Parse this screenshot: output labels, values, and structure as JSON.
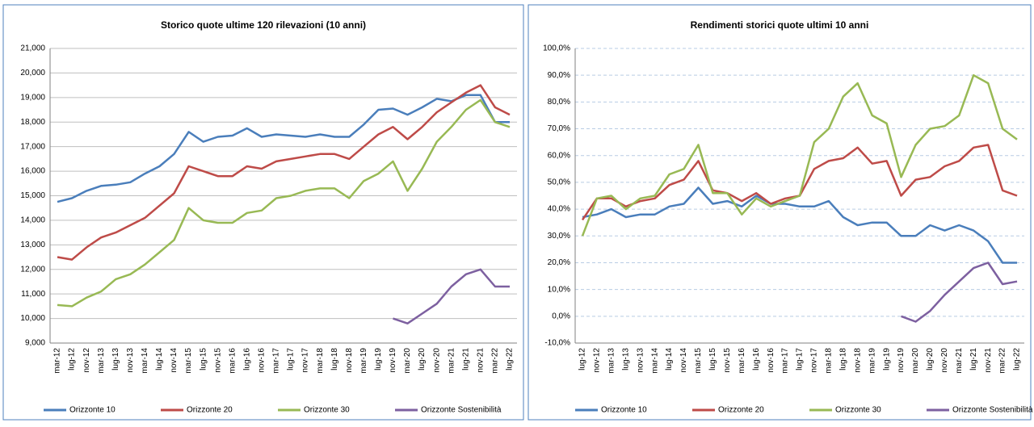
{
  "chart_data": [
    {
      "type": "line",
      "title": "Storico quote ultime 120 rilevazioni (10 anni)",
      "categories": [
        "mar-12",
        "lug-12",
        "nov-12",
        "mar-13",
        "lug-13",
        "nov-13",
        "mar-14",
        "lug-14",
        "nov-14",
        "mar-15",
        "lug-15",
        "nov-15",
        "mar-16",
        "lug-16",
        "nov-16",
        "mar-17",
        "lug-17",
        "nov-17",
        "mar-18",
        "lug-18",
        "nov-18",
        "mar-19",
        "lug-19",
        "nov-19",
        "mar-20",
        "lug-20",
        "nov-20",
        "mar-21",
        "lug-21",
        "nov-21",
        "mar-22",
        "lug-22"
      ],
      "series": [
        {
          "name": "Orizzonte 10",
          "color": "#4a7ebb",
          "values": [
            14750,
            14900,
            15200,
            15400,
            15450,
            15550,
            15900,
            16200,
            16700,
            17600,
            17200,
            17400,
            17450,
            17750,
            17400,
            17500,
            17450,
            17400,
            17500,
            17400,
            17400,
            17900,
            18500,
            18550,
            18300,
            18600,
            18950,
            18850,
            19100,
            19100,
            18000,
            18000
          ]
        },
        {
          "name": "Orizzonte 20",
          "color": "#be4b48",
          "values": [
            12500,
            12400,
            12900,
            13300,
            13500,
            13800,
            14100,
            14600,
            15100,
            16200,
            16000,
            15800,
            15800,
            16200,
            16100,
            16400,
            16500,
            16600,
            16700,
            16700,
            16500,
            17000,
            17500,
            17800,
            17300,
            17800,
            18400,
            18800,
            19200,
            19500,
            18600,
            18300
          ]
        },
        {
          "name": "Orizzonte 30",
          "color": "#98b954",
          "values": [
            10550,
            10500,
            10850,
            11100,
            11600,
            11800,
            12200,
            12700,
            13200,
            14500,
            14000,
            13900,
            13900,
            14300,
            14400,
            14900,
            15000,
            15200,
            15300,
            15300,
            14900,
            15600,
            15900,
            16400,
            15200,
            16100,
            17200,
            17800,
            18500,
            18900,
            18000,
            17800
          ]
        },
        {
          "name": "Orizzonte Sostenibilità",
          "color": "#7d60a0",
          "values": [
            null,
            null,
            null,
            null,
            null,
            null,
            null,
            null,
            null,
            null,
            null,
            null,
            null,
            null,
            null,
            null,
            null,
            null,
            null,
            null,
            null,
            null,
            null,
            10000,
            9800,
            10200,
            10600,
            11300,
            11800,
            12000,
            11300,
            11300
          ]
        }
      ],
      "ylim": [
        9000,
        21000
      ],
      "yticks": [
        {
          "value": 9000,
          "label": "9,000"
        },
        {
          "value": 10000,
          "label": "10,000"
        },
        {
          "value": 11000,
          "label": "11,000"
        },
        {
          "value": 12000,
          "label": "12,000"
        },
        {
          "value": 13000,
          "label": "13,000"
        },
        {
          "value": 14000,
          "label": "14,000"
        },
        {
          "value": 15000,
          "label": "15,000"
        },
        {
          "value": 16000,
          "label": "16,000"
        },
        {
          "value": 17000,
          "label": "17,000"
        },
        {
          "value": 18000,
          "label": "18,000"
        },
        {
          "value": 19000,
          "label": "19,000"
        },
        {
          "value": 20000,
          "label": "20,000"
        },
        {
          "value": 21000,
          "label": "21,000"
        }
      ],
      "grid": true,
      "legend": "bottom"
    },
    {
      "type": "line",
      "title": "Rendimenti storici quote ultimi 10 anni",
      "categories": [
        "lug-12",
        "nov-12",
        "mar-13",
        "lug-13",
        "nov-13",
        "mar-14",
        "lug-14",
        "nov-14",
        "mar-15",
        "lug-15",
        "nov-15",
        "mar-16",
        "lug-16",
        "nov-16",
        "mar-17",
        "lug-17",
        "nov-17",
        "mar-18",
        "lug-18",
        "nov-18",
        "mar-19",
        "lug-19",
        "nov-19",
        "mar-20",
        "lug-20",
        "nov-20",
        "mar-21",
        "lug-21",
        "nov-21",
        "mar-22",
        "lug-22"
      ],
      "series": [
        {
          "name": "Orizzonte 10",
          "color": "#4a7ebb",
          "values": [
            37,
            38,
            40,
            37,
            38,
            38,
            41,
            42,
            48,
            42,
            43,
            41,
            45,
            42,
            42,
            41,
            41,
            43,
            37,
            34,
            35,
            35,
            30,
            30,
            34,
            32,
            34,
            32,
            28,
            20,
            20
          ]
        },
        {
          "name": "Orizzonte 20",
          "color": "#be4b48",
          "values": [
            36,
            44,
            44,
            41,
            43,
            44,
            49,
            51,
            58,
            47,
            46,
            43,
            46,
            42,
            44,
            45,
            55,
            58,
            59,
            63,
            57,
            58,
            45,
            51,
            52,
            56,
            58,
            63,
            64,
            47,
            45
          ]
        },
        {
          "name": "Orizzonte 30",
          "color": "#98b954",
          "values": [
            30,
            44,
            45,
            40,
            44,
            45,
            53,
            55,
            64,
            46,
            46,
            38,
            44,
            41,
            43,
            45,
            65,
            70,
            82,
            87,
            75,
            72,
            52,
            64,
            70,
            71,
            75,
            90,
            87,
            70,
            66
          ]
        },
        {
          "name": "Orizzonte Sostenibilità",
          "color": "#7d60a0",
          "values": [
            null,
            null,
            null,
            null,
            null,
            null,
            null,
            null,
            null,
            null,
            null,
            null,
            null,
            null,
            null,
            null,
            null,
            null,
            null,
            null,
            null,
            null,
            0,
            -2,
            2,
            8,
            13,
            18,
            20,
            12,
            13
          ]
        }
      ],
      "ylim": [
        -10,
        100
      ],
      "yticks": [
        {
          "value": -10,
          "label": "-10,0%"
        },
        {
          "value": 0,
          "label": "0,0%"
        },
        {
          "value": 10,
          "label": "10,0%"
        },
        {
          "value": 20,
          "label": "20,0%"
        },
        {
          "value": 30,
          "label": "30,0%"
        },
        {
          "value": 40,
          "label": "40,0%"
        },
        {
          "value": 50,
          "label": "50,0%"
        },
        {
          "value": 60,
          "label": "60,0%"
        },
        {
          "value": 70,
          "label": "70,0%"
        },
        {
          "value": 80,
          "label": "80,0%"
        },
        {
          "value": 90,
          "label": "90,0%"
        },
        {
          "value": 100,
          "label": "100,0%"
        }
      ],
      "grid": true,
      "legend": "bottom"
    }
  ]
}
